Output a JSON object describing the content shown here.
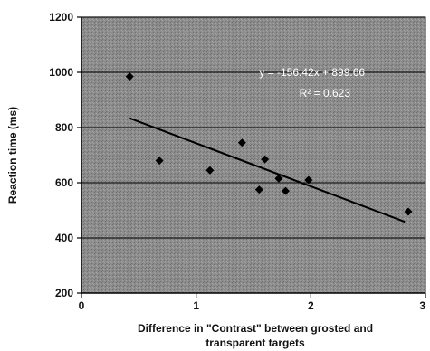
{
  "chart_data": {
    "type": "scatter",
    "title": "",
    "xlabel": "Difference in \"Contrast\" between grosted and transparent targets",
    "xlabel_lines": [
      "Difference in \"Contrast\" between grosted and",
      "transparent targets"
    ],
    "ylabel": "Reaction time (ms)",
    "xlim": [
      0,
      3
    ],
    "ylim": [
      200,
      1200
    ],
    "xticks": [
      0,
      1,
      2,
      3
    ],
    "xtick_labels": [
      "0",
      "1",
      "2",
      "3"
    ],
    "yticks": [
      200,
      400,
      600,
      800,
      1000,
      1200
    ],
    "ytick_labels": [
      "200",
      "400",
      "600",
      "800",
      "1000",
      "1200"
    ],
    "grid": true,
    "legend": "none",
    "colors": {
      "plot_background": "#8a8a8a",
      "gridline": "#1a1a1a",
      "points": "#000000",
      "trendline": "#000000",
      "annotation_text": "#ffffff"
    },
    "series": [
      {
        "marker": "diamond",
        "x": [
          0.42,
          0.68,
          1.12,
          1.4,
          1.55,
          1.6,
          1.72,
          1.78,
          1.98,
          2.85
        ],
        "y": [
          985,
          680,
          645,
          745,
          575,
          685,
          615,
          570,
          610,
          495
        ]
      }
    ],
    "trendline": {
      "type": "linear",
      "slope": -156.42,
      "intercept": 899.66,
      "x_start": 0.42,
      "x_end": 2.82
    },
    "annotations": {
      "equation": "y = -156.42x + 899.66",
      "r_squared": "R² = 0.623"
    }
  }
}
